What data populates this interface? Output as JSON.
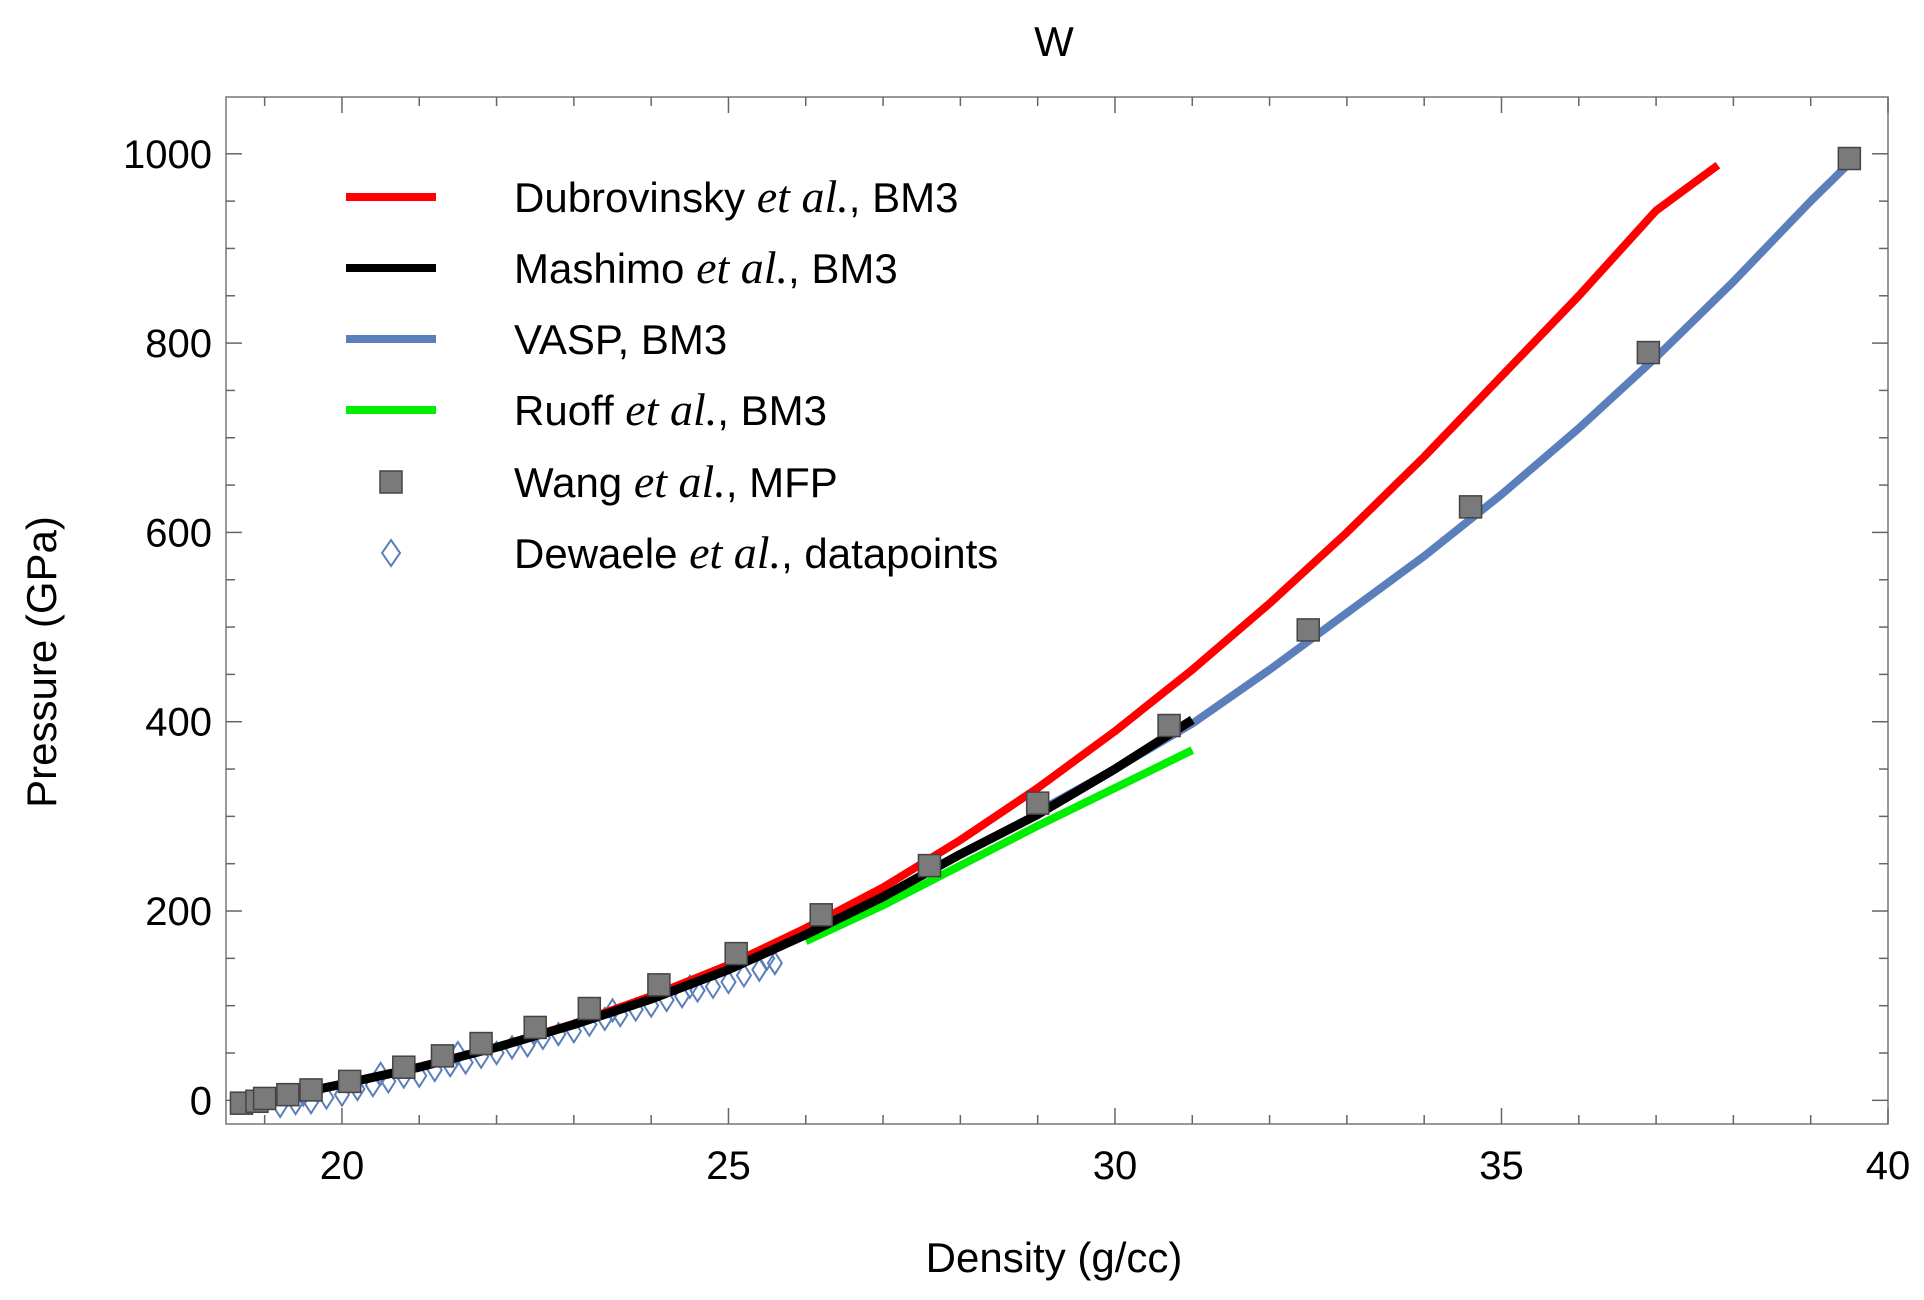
{
  "chart_data": {
    "type": "line",
    "title": "W",
    "xlabel": "Density (g/cc)",
    "ylabel": "Pressure (GPa)",
    "xlim": [
      18.5,
      40
    ],
    "ylim": [
      -25,
      1060
    ],
    "xticks": [
      20,
      25,
      30,
      35,
      40
    ],
    "yticks": [
      0,
      200,
      400,
      600,
      800,
      1000
    ],
    "frame": true,
    "grid": false,
    "legend_position": "top-left",
    "legend": [
      {
        "id": "dub",
        "kind": "line",
        "color": "#ff0000",
        "pre": "Dubrovinsky ",
        "ital": "et al.",
        "post": ", BM3"
      },
      {
        "id": "mas",
        "kind": "line",
        "color": "#000000",
        "pre": "Mashimo ",
        "ital": "et al.",
        "post": ", BM3"
      },
      {
        "id": "vasp",
        "kind": "line",
        "color": "#5b7fbb",
        "pre": "VASP, BM3",
        "ital": "",
        "post": ""
      },
      {
        "id": "ruo",
        "kind": "line",
        "color": "#00ee00",
        "pre": "Ruoff ",
        "ital": "et al.",
        "post": ", BM3"
      },
      {
        "id": "wang",
        "kind": "square",
        "color": "#7a7a7a",
        "pre": "Wang ",
        "ital": "et al.",
        "post": ", MFP"
      },
      {
        "id": "dew",
        "kind": "diamond",
        "color": "#5b7fbb",
        "pre": "Dewaele ",
        "ital": "et al.",
        "post": ", datapoints"
      }
    ],
    "series": [
      {
        "name": "Dubrovinsky et al., BM3",
        "color": "#ff0000",
        "x": [
          19.0,
          20.0,
          21.0,
          22.0,
          23.0,
          24.0,
          25.0,
          26.0,
          27.0,
          28.0,
          29.0,
          30.0,
          31.0,
          32.0,
          33.0,
          34.0,
          35.0,
          36.0,
          37.0,
          37.8
        ],
        "y": [
          0,
          17,
          35,
          56,
          81,
          110,
          143,
          182,
          225,
          275,
          330,
          390,
          455,
          525,
          600,
          680,
          765,
          850,
          940,
          988
        ]
      },
      {
        "name": "Mashimo et al., BM3",
        "color": "#000000",
        "x": [
          19.0,
          20.0,
          21.0,
          22.0,
          23.0,
          24.0,
          25.0,
          26.0,
          27.0,
          28.0,
          29.0,
          30.0,
          31.0
        ],
        "y": [
          0,
          17,
          35,
          56,
          80,
          107,
          138,
          175,
          215,
          260,
          302,
          350,
          402
        ]
      },
      {
        "name": "VASP, BM3",
        "color": "#5b7fbb",
        "x": [
          29.0,
          30.0,
          31.0,
          32.0,
          33.0,
          34.0,
          35.0,
          36.0,
          37.0,
          38.0,
          39.0,
          39.5
        ],
        "y": [
          305,
          350,
          398,
          455,
          515,
          575,
          640,
          710,
          785,
          865,
          950,
          990
        ]
      },
      {
        "name": "Ruoff et al., BM3",
        "color": "#00ee00",
        "x": [
          26.0,
          27.0,
          28.0,
          29.0,
          30.0,
          31.0
        ],
        "y": [
          168,
          206,
          248,
          290,
          330,
          370
        ]
      },
      {
        "name": "Wang et al., MFP",
        "color": "#7a7a7a",
        "x": [
          18.7,
          18.9,
          19.0,
          19.3,
          19.6,
          20.1,
          20.8,
          21.3,
          21.8,
          22.5,
          23.2,
          24.1,
          25.1,
          26.2,
          27.6,
          29.0,
          30.7,
          32.5,
          34.6,
          36.9,
          39.5
        ],
        "y": [
          -3,
          -1,
          2,
          6,
          11,
          20,
          35,
          47,
          60,
          77,
          97,
          122,
          155,
          196,
          248,
          314,
          396,
          497,
          627,
          790,
          995
        ]
      },
      {
        "name": "Dewaele et al., datapoints",
        "color": "#5b7fbb",
        "x": [
          19.2,
          19.4,
          19.6,
          19.8,
          20.0,
          20.2,
          20.4,
          20.6,
          20.8,
          21.0,
          21.2,
          21.4,
          21.6,
          21.8,
          22.0,
          22.2,
          22.4,
          22.6,
          22.8,
          23.0,
          23.2,
          23.4,
          23.6,
          23.8,
          24.0,
          24.2,
          24.4,
          24.6,
          24.8,
          25.0,
          25.2,
          25.4,
          25.6,
          19.5,
          20.5,
          21.5,
          22.5,
          23.5,
          24.5,
          25.5
        ],
        "y": [
          -6,
          -3,
          -2,
          3,
          6,
          12,
          16,
          20,
          25,
          26,
          32,
          37,
          40,
          46,
          50,
          56,
          58,
          66,
          70,
          73,
          80,
          86,
          90,
          96,
          100,
          106,
          110,
          116,
          120,
          125,
          132,
          138,
          145,
          6,
          28,
          50,
          72,
          95,
          120,
          150
        ]
      }
    ]
  }
}
